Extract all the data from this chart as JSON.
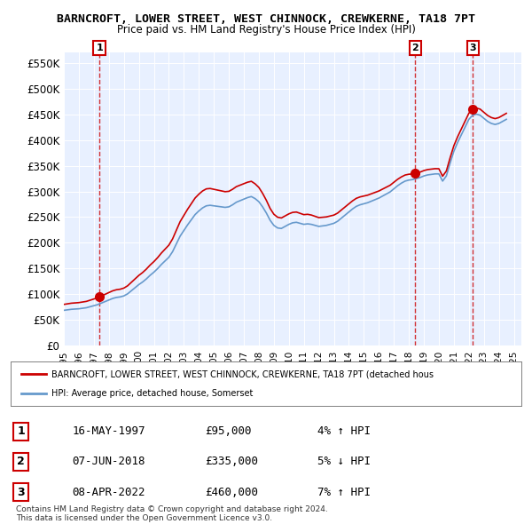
{
  "title": "BARNCROFT, LOWER STREET, WEST CHINNOCK, CREWKERNE, TA18 7PT",
  "subtitle": "Price paid vs. HM Land Registry's House Price Index (HPI)",
  "ylabel": "",
  "ylim": [
    0,
    570000
  ],
  "yticks": [
    0,
    50000,
    100000,
    150000,
    200000,
    250000,
    300000,
    350000,
    400000,
    450000,
    500000,
    550000
  ],
  "ytick_labels": [
    "£0",
    "£50K",
    "£100K",
    "£150K",
    "£200K",
    "£250K",
    "£300K",
    "£350K",
    "£400K",
    "£450K",
    "£500K",
    "£550K"
  ],
  "bg_color": "#e8f0ff",
  "plot_bg_color": "#e8f0ff",
  "line_color_red": "#cc0000",
  "line_color_blue": "#6699cc",
  "sale_marker_color": "#cc0000",
  "dashed_line_color": "#cc0000",
  "sales": [
    {
      "date_idx": 1997.37,
      "price": 95000,
      "label": "1"
    },
    {
      "date_idx": 2018.43,
      "price": 335000,
      "label": "2"
    },
    {
      "date_idx": 2022.27,
      "price": 460000,
      "label": "3"
    }
  ],
  "legend_label_red": "BARNCROFT, LOWER STREET, WEST CHINNOCK, CREWKERNE, TA18 7PT (detached hous",
  "legend_label_blue": "HPI: Average price, detached house, Somerset",
  "table_rows": [
    {
      "num": "1",
      "date": "16-MAY-1997",
      "price": "£95,000",
      "hpi": "4% ↑ HPI"
    },
    {
      "num": "2",
      "date": "07-JUN-2018",
      "price": "£335,000",
      "hpi": "5% ↓ HPI"
    },
    {
      "num": "3",
      "date": "08-APR-2022",
      "price": "£460,000",
      "hpi": "7% ↑ HPI"
    }
  ],
  "footer": [
    "Contains HM Land Registry data © Crown copyright and database right 2024.",
    "This data is licensed under the Open Government Licence v3.0."
  ],
  "hpi_data": {
    "years": [
      1995.0,
      1995.25,
      1995.5,
      1995.75,
      1996.0,
      1996.25,
      1996.5,
      1996.75,
      1997.0,
      1997.25,
      1997.5,
      1997.75,
      1998.0,
      1998.25,
      1998.5,
      1998.75,
      1999.0,
      1999.25,
      1999.5,
      1999.75,
      2000.0,
      2000.25,
      2000.5,
      2000.75,
      2001.0,
      2001.25,
      2001.5,
      2001.75,
      2002.0,
      2002.25,
      2002.5,
      2002.75,
      2003.0,
      2003.25,
      2003.5,
      2003.75,
      2004.0,
      2004.25,
      2004.5,
      2004.75,
      2005.0,
      2005.25,
      2005.5,
      2005.75,
      2006.0,
      2006.25,
      2006.5,
      2006.75,
      2007.0,
      2007.25,
      2007.5,
      2007.75,
      2008.0,
      2008.25,
      2008.5,
      2008.75,
      2009.0,
      2009.25,
      2009.5,
      2009.75,
      2010.0,
      2010.25,
      2010.5,
      2010.75,
      2011.0,
      2011.25,
      2011.5,
      2011.75,
      2012.0,
      2012.25,
      2012.5,
      2012.75,
      2013.0,
      2013.25,
      2013.5,
      2013.75,
      2014.0,
      2014.25,
      2014.5,
      2014.75,
      2015.0,
      2015.25,
      2015.5,
      2015.75,
      2016.0,
      2016.25,
      2016.5,
      2016.75,
      2017.0,
      2017.25,
      2017.5,
      2017.75,
      2018.0,
      2018.25,
      2018.5,
      2018.75,
      2019.0,
      2019.25,
      2019.5,
      2019.75,
      2020.0,
      2020.25,
      2020.5,
      2020.75,
      2021.0,
      2021.25,
      2021.5,
      2021.75,
      2022.0,
      2022.25,
      2022.5,
      2022.75,
      2023.0,
      2023.25,
      2023.5,
      2023.75,
      2024.0,
      2024.25,
      2024.5
    ],
    "hpi_values": [
      69000,
      70000,
      71000,
      71500,
      72000,
      73000,
      74000,
      76000,
      78000,
      80000,
      83000,
      86000,
      89000,
      92000,
      94000,
      95000,
      97000,
      101000,
      107000,
      113000,
      119000,
      124000,
      130000,
      137000,
      143000,
      150000,
      158000,
      165000,
      172000,
      183000,
      198000,
      213000,
      224000,
      235000,
      245000,
      255000,
      262000,
      268000,
      272000,
      273000,
      272000,
      271000,
      270000,
      269000,
      270000,
      274000,
      279000,
      282000,
      285000,
      288000,
      290000,
      286000,
      280000,
      270000,
      258000,
      244000,
      234000,
      229000,
      228000,
      232000,
      236000,
      239000,
      240000,
      238000,
      236000,
      237000,
      236000,
      234000,
      232000,
      233000,
      234000,
      236000,
      238000,
      242000,
      248000,
      254000,
      260000,
      266000,
      271000,
      274000,
      276000,
      278000,
      281000,
      284000,
      287000,
      291000,
      295000,
      299000,
      305000,
      311000,
      316000,
      320000,
      322000,
      323000,
      325000,
      327000,
      330000,
      332000,
      333000,
      334000,
      334000,
      320000,
      330000,
      355000,
      378000,
      395000,
      410000,
      425000,
      440000,
      448000,
      450000,
      448000,
      442000,
      436000,
      432000,
      430000,
      432000,
      436000,
      440000
    ],
    "price_paid": [
      null,
      null,
      null,
      null,
      null,
      null,
      null,
      null,
      null,
      null,
      null,
      null,
      null,
      null,
      null,
      null,
      null,
      null,
      null,
      null,
      null,
      null,
      null,
      null,
      null,
      null,
      null,
      null,
      null,
      null,
      null,
      null,
      null,
      null,
      null,
      null,
      null,
      null,
      null,
      null,
      null,
      null,
      null,
      null,
      null,
      null,
      null,
      null,
      null,
      null,
      null,
      null,
      null,
      null,
      null,
      null,
      null,
      null,
      null,
      null,
      null,
      null,
      null,
      null,
      null,
      null,
      null,
      null,
      null,
      null,
      null,
      null,
      null,
      null,
      null,
      null,
      null,
      null,
      null,
      null,
      null,
      null,
      null,
      null,
      null,
      null,
      null,
      null,
      null,
      null,
      null,
      null,
      null,
      null,
      null,
      null,
      null,
      null,
      null,
      null,
      null,
      null,
      null,
      null,
      null,
      null,
      null,
      null,
      null,
      null,
      null,
      null,
      null,
      null,
      null,
      null,
      null,
      null,
      null
    ]
  }
}
